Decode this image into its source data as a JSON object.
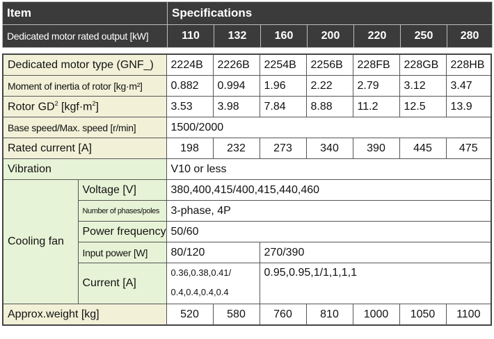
{
  "header": {
    "item_label": "Item",
    "specs_label": "Specifications",
    "output_label": "Dedicated motor rated output [kW]",
    "outputs": [
      "110",
      "132",
      "160",
      "200",
      "220",
      "250",
      "280"
    ]
  },
  "rows": {
    "motor_type": {
      "label": "Dedicated motor type (GNF_)",
      "values": [
        "2224B",
        "2226B",
        "2254B",
        "2256B",
        "228FB",
        "228GB",
        "228HB"
      ]
    },
    "inertia": {
      "label": "Moment of inertia of rotor [kg·m²]",
      "values": [
        "0.882",
        "0.994",
        "1.96",
        "2.22",
        "2.79",
        "3.12",
        "3.47"
      ]
    },
    "gd2": {
      "label_pre": "Rotor GD",
      "label_sup": "2",
      "label_mid": " [kgf·m",
      "label_sup2": "2",
      "label_post": "]",
      "values": [
        "3.53",
        "3.98",
        "7.84",
        "8.88",
        "11.2",
        "12.5",
        "13.9"
      ]
    },
    "speed": {
      "label": "Base speed/Max. speed [r/min]",
      "value": "1500/2000"
    },
    "current": {
      "label": "Rated current [A]",
      "values": [
        "198",
        "232",
        "273",
        "340",
        "390",
        "445",
        "475"
      ]
    },
    "vibration": {
      "label": "Vibration",
      "value": "V10 or less"
    },
    "cooling_fan": {
      "label": "Cooling fan",
      "voltage": {
        "label": "Voltage [V]",
        "value": "380,400,415/400,415,440,460"
      },
      "phases": {
        "label": "Number of phases/poles",
        "value": "3-phase, 4P"
      },
      "frequency": {
        "label": "Power frequency",
        "value": "50/60"
      },
      "input_power": {
        "label": "Input power [W]",
        "value_a": "80/120",
        "value_b": "270/390"
      },
      "fan_current": {
        "label": "Current [A]",
        "value_a_line1": "0.36,0.38,0.41/",
        "value_a_line2": "0.4,0.4,0.4,0.4",
        "value_b": "0.95,0.95,1/1,1,1,1"
      }
    },
    "weight": {
      "label": "Approx.weight [kg]",
      "values": [
        "520",
        "580",
        "760",
        "810",
        "1000",
        "1050",
        "1100"
      ]
    }
  }
}
